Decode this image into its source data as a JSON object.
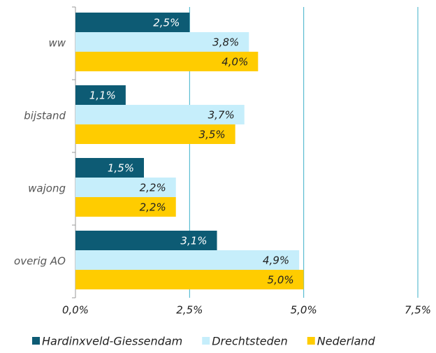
{
  "chart_data": {
    "type": "hbar",
    "categories": [
      "ww",
      "bijstand",
      "wajong",
      "overig AO"
    ],
    "series": [
      {
        "name": "Hardinxveld-Giessendam",
        "color": "#0d5b74",
        "values": [
          2.5,
          1.1,
          1.5,
          3.1
        ],
        "value_labels": [
          "2,5%",
          "1,1%",
          "1,5%",
          "3,1%"
        ]
      },
      {
        "name": "Drechtsteden",
        "color": "#c6eefb",
        "values": [
          3.8,
          3.7,
          2.2,
          4.9
        ],
        "value_labels": [
          "3,8%",
          "3,7%",
          "2,2%",
          "4,9%"
        ]
      },
      {
        "name": "Nederland",
        "color": "#ffcc00",
        "values": [
          4.0,
          3.5,
          2.2,
          5.0
        ],
        "value_labels": [
          "4,0%",
          "3,5%",
          "2,2%",
          "5,0%"
        ]
      }
    ],
    "xlim": [
      0,
      7.5
    ],
    "xticks": [
      {
        "value": 0,
        "label": "0,0%"
      },
      {
        "value": 2.5,
        "label": "2,5%"
      },
      {
        "value": 5,
        "label": "5,0%"
      },
      {
        "value": 7.5,
        "label": "7,5%"
      }
    ],
    "grid": true,
    "legend": "bottom"
  }
}
